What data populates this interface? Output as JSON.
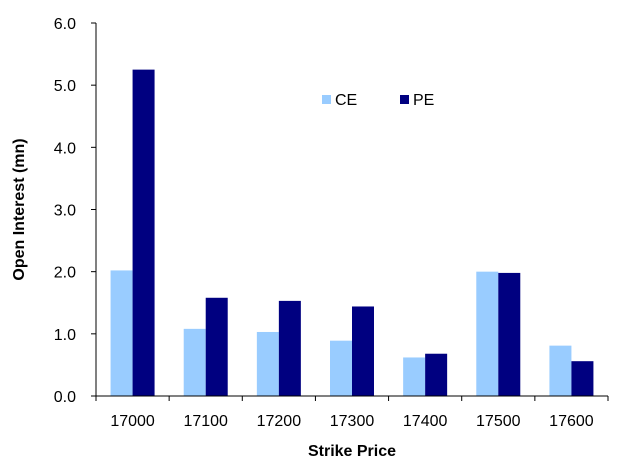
{
  "chart_data": {
    "type": "bar",
    "title": "",
    "xlabel": "Strike Price",
    "ylabel": "Open Interest (mn)",
    "categories": [
      "17000",
      "17100",
      "17200",
      "17300",
      "17400",
      "17500",
      "17600"
    ],
    "series": [
      {
        "name": "CE",
        "color": "#99CCFF",
        "values": [
          2.02,
          1.08,
          1.03,
          0.89,
          0.62,
          2.0,
          0.81
        ]
      },
      {
        "name": "PE",
        "color": "#000080",
        "values": [
          5.25,
          1.58,
          1.53,
          1.44,
          0.68,
          1.98,
          0.56
        ]
      }
    ],
    "ylim": [
      0,
      6
    ],
    "yticks": [
      "0.0",
      "1.0",
      "2.0",
      "3.0",
      "4.0",
      "5.0",
      "6.0"
    ],
    "grid": false,
    "legend_position": "top-center"
  }
}
